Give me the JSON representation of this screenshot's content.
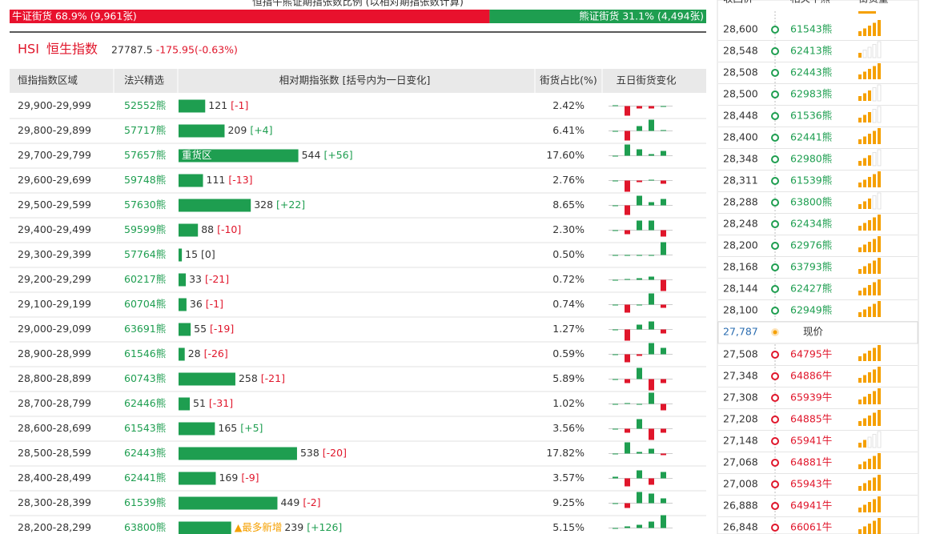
{
  "ratio": {
    "title": "恒指牛熊证期指张数比例 (以相对期指张数计算)",
    "bull": {
      "label": "牛证街货 68.9% (9,961张)",
      "percent": 68.9
    },
    "bear": {
      "label": "熊证街货 31.1% (4,494张)",
      "percent": 31.1
    }
  },
  "index": {
    "code": "HSI",
    "name": "恒生指数",
    "price": "27787.5",
    "change": "-175.95(-0.63%)"
  },
  "table": {
    "headers": [
      "恒指指数区域",
      "法兴精选",
      "相对期指张数 [括号内为一日变化]",
      "街货占比(%)",
      "五日街货变化"
    ],
    "rows": [
      {
        "range": "29,900-29,999",
        "code": "52552熊",
        "contracts": 121,
        "change": "[-1]",
        "share": "2.42%",
        "five_day": [
          1,
          -12,
          -3,
          -3,
          0
        ]
      },
      {
        "range": "29,800-29,899",
        "code": "57717熊",
        "contracts": 209,
        "change": "[+4]",
        "share": "6.41%",
        "five_day": [
          0,
          -12,
          6,
          14,
          1
        ]
      },
      {
        "range": "29,700-29,799",
        "code": "57657熊",
        "contracts": 544,
        "change": "[+56]",
        "share": "17.60%",
        "tag": "重货区",
        "five_day": [
          0,
          14,
          8,
          2,
          6
        ]
      },
      {
        "range": "29,600-29,699",
        "code": "59748熊",
        "contracts": 111,
        "change": "[-13]",
        "share": "2.76%",
        "five_day": [
          0,
          -14,
          -2,
          1,
          -4
        ]
      },
      {
        "range": "29,500-29,599",
        "code": "57630熊",
        "contracts": 328,
        "change": "[+22]",
        "share": "8.65%",
        "five_day": [
          0,
          -12,
          12,
          4,
          8
        ]
      },
      {
        "range": "29,400-29,499",
        "code": "59599熊",
        "contracts": 88,
        "change": "[-10]",
        "share": "2.30%",
        "five_day": [
          0,
          -5,
          12,
          12,
          -8
        ]
      },
      {
        "range": "29,300-29,399",
        "code": "57764熊",
        "contracts": 15,
        "change": "[0]",
        "share": "0.50%",
        "five_day": [
          0,
          0,
          0,
          0,
          16
        ]
      },
      {
        "range": "29,200-29,299",
        "code": "60217熊",
        "contracts": 33,
        "change": "[-21]",
        "share": "0.72%",
        "five_day": [
          0,
          1,
          2,
          4,
          -14
        ]
      },
      {
        "range": "29,100-29,199",
        "code": "60704熊",
        "contracts": 36,
        "change": "[-1]",
        "share": "0.74%",
        "five_day": [
          0,
          -10,
          0,
          14,
          -4
        ]
      },
      {
        "range": "29,000-29,099",
        "code": "63691熊",
        "contracts": 55,
        "change": "[-19]",
        "share": "1.27%",
        "five_day": [
          0,
          -14,
          6,
          10,
          -5
        ]
      },
      {
        "range": "28,900-28,999",
        "code": "61546熊",
        "contracts": 28,
        "change": "[-26]",
        "share": "0.59%",
        "five_day": [
          0,
          -10,
          -2,
          14,
          8
        ]
      },
      {
        "range": "28,800-28,899",
        "code": "60743熊",
        "contracts": 258,
        "change": "[-21]",
        "share": "5.89%",
        "five_day": [
          0,
          -5,
          14,
          -14,
          -5
        ]
      },
      {
        "range": "28,700-28,799",
        "code": "62446熊",
        "contracts": 51,
        "change": "[-31]",
        "share": "1.02%",
        "five_day": [
          0,
          1,
          0,
          14,
          -8
        ]
      },
      {
        "range": "28,600-28,699",
        "code": "61543熊",
        "contracts": 165,
        "change": "[+5]",
        "share": "3.56%",
        "five_day": [
          0,
          -5,
          12,
          -14,
          -5
        ]
      },
      {
        "range": "28,500-28,599",
        "code": "62443熊",
        "contracts": 538,
        "change": "[-20]",
        "share": "17.82%",
        "five_day": [
          0,
          14,
          2,
          6,
          -2
        ]
      },
      {
        "range": "28,400-28,499",
        "code": "62441熊",
        "contracts": 169,
        "change": "[-9]",
        "share": "3.57%",
        "five_day": [
          2,
          -10,
          10,
          -8,
          8
        ]
      },
      {
        "range": "28,300-28,399",
        "code": "61539熊",
        "contracts": 449,
        "change": "[-2]",
        "share": "9.25%",
        "five_day": [
          0,
          -6,
          14,
          12,
          6
        ]
      },
      {
        "range": "28,200-28,299",
        "code": "63800熊",
        "contracts": 239,
        "change": "[+126]",
        "share": "5.15%",
        "tag": "▲最多新增",
        "five_day": [
          0,
          2,
          4,
          8,
          16
        ]
      }
    ]
  },
  "ladder": {
    "headers": [
      "收回价",
      "相关牛熊",
      "街货量"
    ],
    "bear_rows": [
      {
        "price": "28,600",
        "code": "61543熊",
        "strength": 5
      },
      {
        "price": "28,548",
        "code": "62413熊",
        "strength": 1
      },
      {
        "price": "28,508",
        "code": "62443熊",
        "strength": 5
      },
      {
        "price": "28,500",
        "code": "62983熊",
        "strength": 3
      },
      {
        "price": "28,448",
        "code": "61536熊",
        "strength": 3
      },
      {
        "price": "28,400",
        "code": "62441熊",
        "strength": 5
      },
      {
        "price": "28,348",
        "code": "62980熊",
        "strength": 3
      },
      {
        "price": "28,311",
        "code": "61539熊",
        "strength": 5
      },
      {
        "price": "28,288",
        "code": "63800熊",
        "strength": 3
      },
      {
        "price": "28,248",
        "code": "62434熊",
        "strength": 5
      },
      {
        "price": "28,200",
        "code": "62976熊",
        "strength": 5
      },
      {
        "price": "28,168",
        "code": "63793熊",
        "strength": 5
      },
      {
        "price": "28,144",
        "code": "62427熊",
        "strength": 5
      },
      {
        "price": "28,100",
        "code": "62949熊",
        "strength": 5
      }
    ],
    "spot": {
      "price": "27,787",
      "label": "现价"
    },
    "bull_rows": [
      {
        "price": "27,508",
        "code": "64795牛",
        "strength": 5
      },
      {
        "price": "27,348",
        "code": "64886牛",
        "strength": 5
      },
      {
        "price": "27,308",
        "code": "65939牛",
        "strength": 5
      },
      {
        "price": "27,208",
        "code": "64885牛",
        "strength": 5
      },
      {
        "price": "27,148",
        "code": "65941牛",
        "strength": 2
      },
      {
        "price": "27,068",
        "code": "64881牛",
        "strength": 5
      },
      {
        "price": "27,008",
        "code": "65943牛",
        "strength": 5
      },
      {
        "price": "26,888",
        "code": "64941牛",
        "strength": 5
      },
      {
        "price": "26,848",
        "code": "66061牛",
        "strength": 5
      }
    ]
  }
}
